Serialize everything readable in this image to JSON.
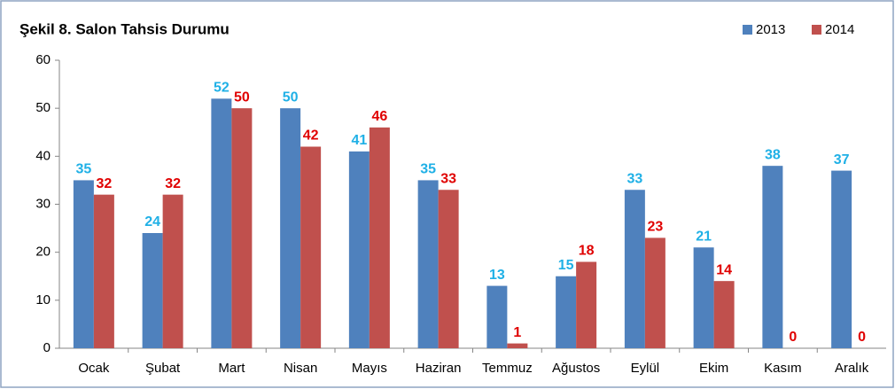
{
  "chart_data": {
    "type": "bar",
    "title": "Şekil 8. Salon Tahsis Durumu",
    "categories": [
      "Ocak",
      "Şubat",
      "Mart",
      "Nisan",
      "Mayıs",
      "Haziran",
      "Temmuz",
      "Ağustos",
      "Eylül",
      "Ekim",
      "Kasım",
      "Aralık"
    ],
    "series": [
      {
        "name": "2013",
        "color": "#4f81bd",
        "label_color": "#1fb0e6",
        "values": [
          35,
          24,
          52,
          50,
          41,
          35,
          13,
          15,
          33,
          21,
          38,
          37
        ]
      },
      {
        "name": "2014",
        "color": "#c0504d",
        "label_color": "#e00000",
        "values": [
          32,
          32,
          50,
          42,
          46,
          33,
          1,
          18,
          23,
          14,
          0,
          0
        ]
      }
    ],
    "ylim": [
      0,
      60
    ],
    "yticks": [
      0,
      10,
      20,
      30,
      40,
      50,
      60
    ],
    "grid": false,
    "legend": "top-right"
  }
}
